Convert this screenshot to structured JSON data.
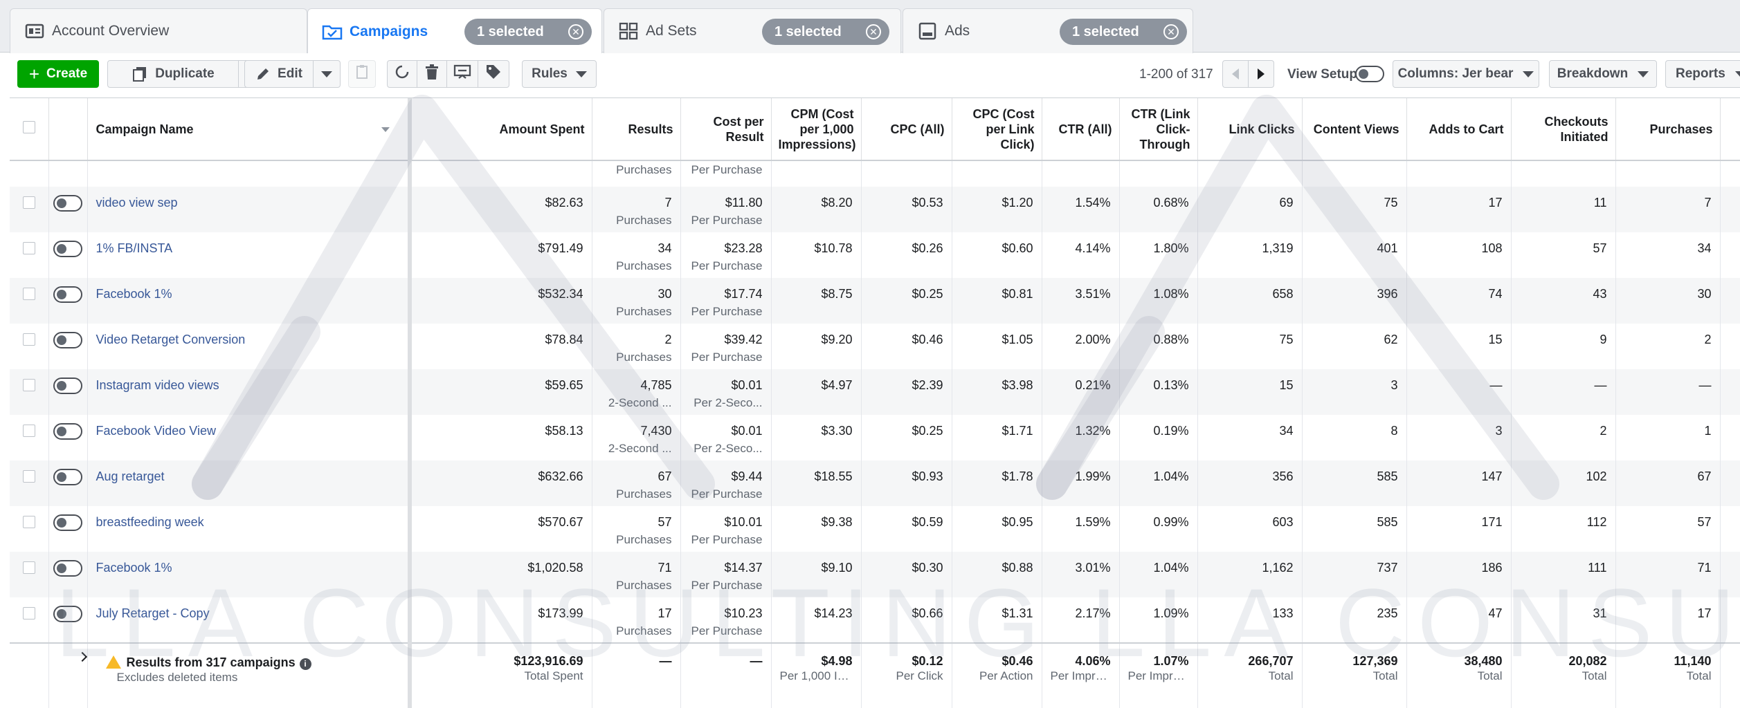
{
  "tabs": {
    "account": {
      "label": "Account Overview"
    },
    "campaigns": {
      "label": "Campaigns",
      "selected": "1 selected"
    },
    "adsets": {
      "label": "Ad Sets",
      "selected": "1 selected"
    },
    "ads": {
      "label": "Ads",
      "selected": "1 selected"
    }
  },
  "toolbar": {
    "create": "Create",
    "duplicate": "Duplicate",
    "edit": "Edit",
    "rules": "Rules",
    "pagination": "1-200 of 317",
    "view_setup": "View Setup",
    "columns": "Columns: Jer bear",
    "breakdown": "Breakdown",
    "reports": "Reports"
  },
  "columns": [
    "Campaign Name",
    "Amount Spent",
    "Results",
    "Cost per Result",
    "CPM (Cost per 1,000 Impressions)",
    "CPC (All)",
    "CPC (Cost per Link Click)",
    "CTR (All)",
    "CTR (Link Click-Through",
    "Link Clicks",
    "Content Views",
    "Adds to Cart",
    "Checkouts Initiated",
    "Purchases"
  ],
  "partial_row": {
    "results_sub": "Purchases",
    "cost_sub": "Per Purchase"
  },
  "rows": [
    {
      "name": "video view sep",
      "spent": "$82.63",
      "results": "7",
      "results_sub": "Purchases",
      "cost": "$11.80",
      "cost_sub": "Per Purchase",
      "cpm": "$8.20",
      "cpc_all": "$0.53",
      "cpc_link": "$1.20",
      "ctr_all": "1.54%",
      "ctr_link": "0.68%",
      "link_clicks": "69",
      "content_views": "75",
      "adds_to_cart": "17",
      "checkouts": "11",
      "purchases": "7"
    },
    {
      "name": "1% FB/INSTA",
      "spent": "$791.49",
      "results": "34",
      "results_sub": "Purchases",
      "cost": "$23.28",
      "cost_sub": "Per Purchase",
      "cpm": "$10.78",
      "cpc_all": "$0.26",
      "cpc_link": "$0.60",
      "ctr_all": "4.14%",
      "ctr_link": "1.80%",
      "link_clicks": "1,319",
      "content_views": "401",
      "adds_to_cart": "108",
      "checkouts": "57",
      "purchases": "34"
    },
    {
      "name": "Facebook 1%",
      "spent": "$532.34",
      "results": "30",
      "results_sub": "Purchases",
      "cost": "$17.74",
      "cost_sub": "Per Purchase",
      "cpm": "$8.75",
      "cpc_all": "$0.25",
      "cpc_link": "$0.81",
      "ctr_all": "3.51%",
      "ctr_link": "1.08%",
      "link_clicks": "658",
      "content_views": "396",
      "adds_to_cart": "74",
      "checkouts": "43",
      "purchases": "30"
    },
    {
      "name": "Video Retarget Conversion",
      "spent": "$78.84",
      "results": "2",
      "results_sub": "Purchases",
      "cost": "$39.42",
      "cost_sub": "Per Purchase",
      "cpm": "$9.20",
      "cpc_all": "$0.46",
      "cpc_link": "$1.05",
      "ctr_all": "2.00%",
      "ctr_link": "0.88%",
      "link_clicks": "75",
      "content_views": "62",
      "adds_to_cart": "15",
      "checkouts": "9",
      "purchases": "2"
    },
    {
      "name": "Instagram video views",
      "spent": "$59.65",
      "results": "4,785",
      "results_sub": "2-Second ...",
      "cost": "$0.01",
      "cost_sub": "Per 2-Seco...",
      "cpm": "$4.97",
      "cpc_all": "$2.39",
      "cpc_link": "$3.98",
      "ctr_all": "0.21%",
      "ctr_link": "0.13%",
      "link_clicks": "15",
      "content_views": "3",
      "adds_to_cart": "—",
      "checkouts": "—",
      "purchases": "—"
    },
    {
      "name": "Facebook Video View",
      "spent": "$58.13",
      "results": "7,430",
      "results_sub": "2-Second ...",
      "cost": "$0.01",
      "cost_sub": "Per 2-Seco...",
      "cpm": "$3.30",
      "cpc_all": "$0.25",
      "cpc_link": "$1.71",
      "ctr_all": "1.32%",
      "ctr_link": "0.19%",
      "link_clicks": "34",
      "content_views": "8",
      "adds_to_cart": "3",
      "checkouts": "2",
      "purchases": "1"
    },
    {
      "name": "Aug retarget",
      "spent": "$632.66",
      "results": "67",
      "results_sub": "Purchases",
      "cost": "$9.44",
      "cost_sub": "Per Purchase",
      "cpm": "$18.55",
      "cpc_all": "$0.93",
      "cpc_link": "$1.78",
      "ctr_all": "1.99%",
      "ctr_link": "1.04%",
      "link_clicks": "356",
      "content_views": "585",
      "adds_to_cart": "147",
      "checkouts": "102",
      "purchases": "67"
    },
    {
      "name": "breastfeeding week",
      "spent": "$570.67",
      "results": "57",
      "results_sub": "Purchases",
      "cost": "$10.01",
      "cost_sub": "Per Purchase",
      "cpm": "$9.38",
      "cpc_all": "$0.59",
      "cpc_link": "$0.95",
      "ctr_all": "1.59%",
      "ctr_link": "0.99%",
      "link_clicks": "603",
      "content_views": "585",
      "adds_to_cart": "171",
      "checkouts": "112",
      "purchases": "57"
    },
    {
      "name": "Facebook 1%",
      "spent": "$1,020.58",
      "results": "71",
      "results_sub": "Purchases",
      "cost": "$14.37",
      "cost_sub": "Per Purchase",
      "cpm": "$9.10",
      "cpc_all": "$0.30",
      "cpc_link": "$0.88",
      "ctr_all": "3.01%",
      "ctr_link": "1.04%",
      "link_clicks": "1,162",
      "content_views": "737",
      "adds_to_cart": "186",
      "checkouts": "111",
      "purchases": "71"
    },
    {
      "name": "July Retarget - Copy",
      "spent": "$173.99",
      "results": "17",
      "results_sub": "Purchases",
      "cost": "$10.23",
      "cost_sub": "Per Purchase",
      "cpm": "$14.23",
      "cpc_all": "$0.66",
      "cpc_link": "$1.31",
      "ctr_all": "2.17%",
      "ctr_link": "1.09%",
      "link_clicks": "133",
      "content_views": "235",
      "adds_to_cart": "47",
      "checkouts": "31",
      "purchases": "17"
    }
  ],
  "totals": {
    "label": "Results from 317 campaigns",
    "sub": "Excludes deleted items",
    "spent": "$123,916.69",
    "spent_sub": "Total Spent",
    "results": "—",
    "cost": "—",
    "cpm": "$4.98",
    "cpm_sub": "Per 1,000 Im...",
    "cpc_all": "$0.12",
    "cpc_all_sub": "Per Click",
    "cpc_link": "$0.46",
    "cpc_link_sub": "Per Action",
    "ctr_all": "4.06%",
    "ctr_all_sub": "Per Impre...",
    "ctr_link": "1.07%",
    "ctr_link_sub": "Per Impre...",
    "link_clicks": "266,707",
    "link_clicks_sub": "Total",
    "content_views": "127,369",
    "content_views_sub": "Total",
    "adds_to_cart": "38,480",
    "adds_to_cart_sub": "Total",
    "checkouts": "20,082",
    "checkouts_sub": "Total",
    "purchases": "11,140",
    "purchases_sub": "Total"
  },
  "watermark": "LLA CONSULTING   LLA CONSULTING",
  "colors": {
    "accent": "#1877f2",
    "create": "#00a400",
    "link": "#385898",
    "pill": "#8d949e"
  }
}
